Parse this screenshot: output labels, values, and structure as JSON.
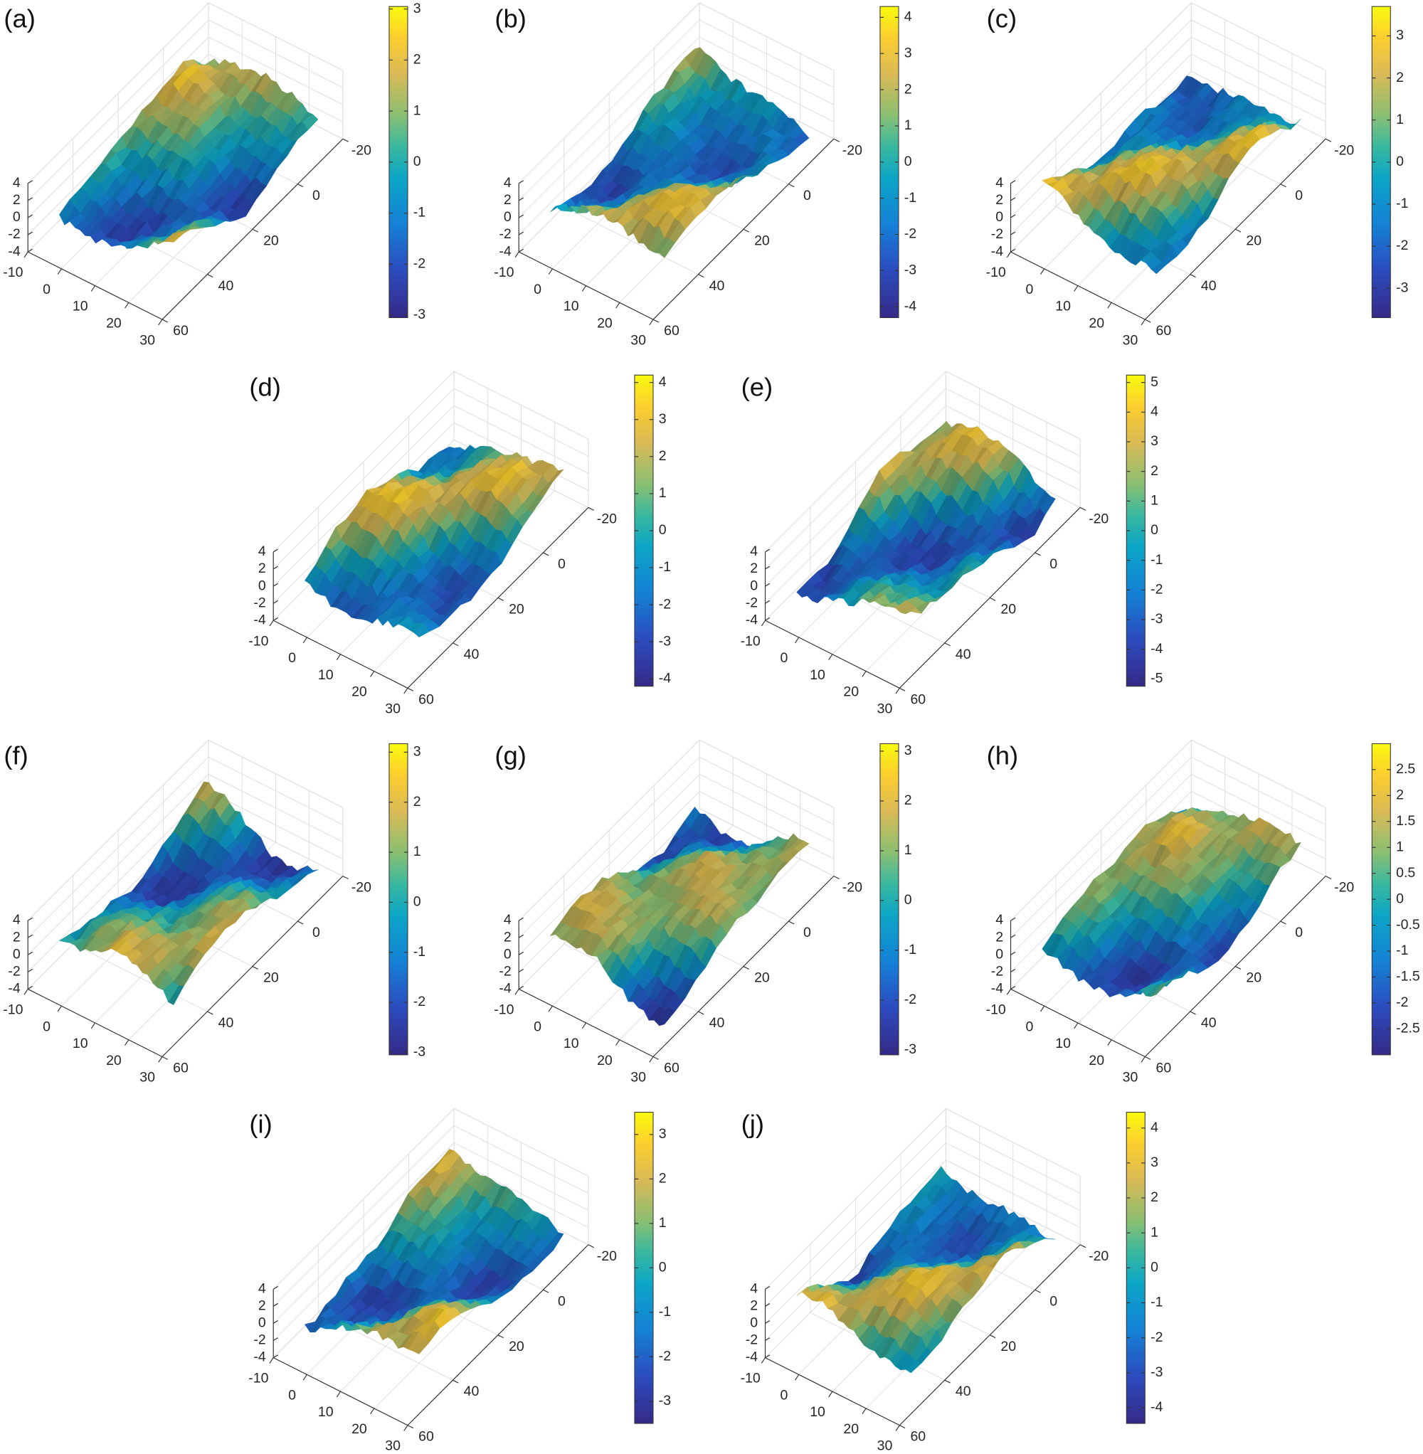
{
  "chart_data": [
    {
      "type": "surface",
      "title": "(a)",
      "xlim": [
        -10,
        30
      ],
      "ylim": [
        -20,
        60
      ],
      "zlim": [
        -4,
        4
      ],
      "xticks": [
        -10,
        0,
        10,
        20,
        30
      ],
      "yticks": [
        -20,
        0,
        20,
        40,
        60
      ],
      "zticks": [
        -4,
        -2,
        0,
        2,
        4
      ],
      "clim": [
        -3.05,
        3.05
      ],
      "cticks": [
        -3,
        -2,
        -1,
        0,
        1,
        2,
        3
      ],
      "grid": true
    },
    {
      "type": "surface",
      "title": "(b)",
      "xlim": [
        -10,
        30
      ],
      "ylim": [
        -20,
        60
      ],
      "zlim": [
        -4,
        4
      ],
      "xticks": [
        -10,
        0,
        10,
        20,
        30
      ],
      "yticks": [
        -20,
        0,
        20,
        40,
        60
      ],
      "zticks": [
        -4,
        -2,
        0,
        2,
        4
      ],
      "clim": [
        -4.3,
        4.3
      ],
      "cticks": [
        -4,
        -3,
        -2,
        -1,
        0,
        1,
        2,
        3,
        4
      ],
      "grid": true
    },
    {
      "type": "surface",
      "title": "(c)",
      "xlim": [
        -10,
        30
      ],
      "ylim": [
        -20,
        60
      ],
      "zlim": [
        -4,
        4
      ],
      "xticks": [
        -10,
        0,
        10,
        20,
        30
      ],
      "yticks": [
        -20,
        0,
        20,
        40,
        60
      ],
      "zticks": [
        -4,
        -2,
        0,
        2,
        4
      ],
      "clim": [
        -3.7,
        3.7
      ],
      "cticks": [
        -3,
        -2,
        -1,
        0,
        1,
        2,
        3
      ],
      "grid": true
    },
    {
      "type": "surface",
      "title": "(d)",
      "xlim": [
        -10,
        30
      ],
      "ylim": [
        -20,
        60
      ],
      "zlim": [
        -4,
        4
      ],
      "xticks": [
        -10,
        0,
        10,
        20,
        30
      ],
      "yticks": [
        -20,
        0,
        20,
        40,
        60
      ],
      "zticks": [
        -4,
        -2,
        0,
        2,
        4
      ],
      "clim": [
        -4.2,
        4.2
      ],
      "cticks": [
        -4,
        -3,
        -2,
        -1,
        0,
        1,
        2,
        3,
        4
      ],
      "grid": true
    },
    {
      "type": "surface",
      "title": "(e)",
      "xlim": [
        -10,
        30
      ],
      "ylim": [
        -20,
        60
      ],
      "zlim": [
        -4,
        4
      ],
      "xticks": [
        -10,
        0,
        10,
        20,
        30
      ],
      "yticks": [
        -20,
        0,
        20,
        40,
        60
      ],
      "zticks": [
        -4,
        -2,
        0,
        2,
        4
      ],
      "clim": [
        -5.25,
        5.25
      ],
      "cticks": [
        -5,
        -4,
        -3,
        -2,
        -1,
        0,
        1,
        2,
        3,
        4,
        5
      ],
      "grid": true
    },
    {
      "type": "surface",
      "title": "(f)",
      "xlim": [
        -10,
        30
      ],
      "ylim": [
        -20,
        60
      ],
      "zlim": [
        -4,
        4
      ],
      "xticks": [
        -10,
        0,
        10,
        20,
        30
      ],
      "yticks": [
        -20,
        0,
        20,
        40,
        60
      ],
      "zticks": [
        -4,
        -2,
        0,
        2,
        4
      ],
      "clim": [
        -3.05,
        3.17
      ],
      "cticks": [
        -3,
        -2,
        -1,
        0,
        1,
        2,
        3
      ],
      "grid": true
    },
    {
      "type": "surface",
      "title": "(g)",
      "xlim": [
        -10,
        30
      ],
      "ylim": [
        -20,
        60
      ],
      "zlim": [
        -4,
        4
      ],
      "xticks": [
        -10,
        0,
        10,
        20,
        30
      ],
      "yticks": [
        -20,
        0,
        20,
        40,
        60
      ],
      "zticks": [
        -4,
        -2,
        0,
        2,
        4
      ],
      "clim": [
        -3.1,
        3.15
      ],
      "cticks": [
        -3,
        -2,
        -1,
        0,
        1,
        2,
        3
      ],
      "grid": true
    },
    {
      "type": "surface",
      "title": "(h)",
      "xlim": [
        -10,
        30
      ],
      "ylim": [
        -20,
        60
      ],
      "zlim": [
        -4,
        4
      ],
      "xticks": [
        -10,
        0,
        10,
        20,
        30
      ],
      "yticks": [
        -20,
        0,
        20,
        40,
        60
      ],
      "zticks": [
        -4,
        -2,
        0,
        2,
        4
      ],
      "clim": [
        -3,
        3
      ],
      "cticks": [
        -2.5,
        -2,
        -1.5,
        -1,
        -0.5,
        0,
        0.5,
        1,
        1.5,
        2,
        2.5
      ],
      "grid": true
    },
    {
      "type": "surface",
      "title": "(i)",
      "xlim": [
        -10,
        30
      ],
      "ylim": [
        -20,
        60
      ],
      "zlim": [
        -4,
        4
      ],
      "xticks": [
        -10,
        0,
        10,
        20,
        30
      ],
      "yticks": [
        -20,
        0,
        20,
        40,
        60
      ],
      "zticks": [
        -4,
        -2,
        0,
        2,
        4
      ],
      "clim": [
        -3.5,
        3.5
      ],
      "cticks": [
        -3,
        -2,
        -1,
        0,
        1,
        2,
        3
      ],
      "grid": true
    },
    {
      "type": "surface",
      "title": "(j)",
      "xlim": [
        -10,
        30
      ],
      "ylim": [
        -20,
        60
      ],
      "zlim": [
        -4,
        4
      ],
      "xticks": [
        -10,
        0,
        10,
        20,
        30
      ],
      "yticks": [
        -20,
        0,
        20,
        40,
        60
      ],
      "zticks": [
        -4,
        -2,
        0,
        2,
        4
      ],
      "clim": [
        -4.45,
        4.45
      ],
      "cticks": [
        -4,
        -3,
        -2,
        -1,
        0,
        1,
        2,
        3,
        4
      ],
      "grid": true
    }
  ]
}
